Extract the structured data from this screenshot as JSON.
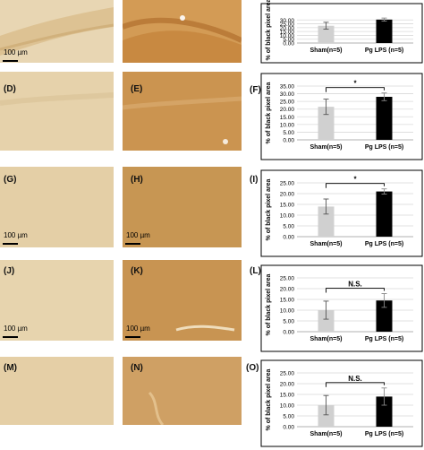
{
  "scale_bar_label": "100 µm",
  "colors": {
    "sham_bar": "#d0d0d0",
    "lps_bar": "#000000",
    "light_tissue": "#e3cfa7",
    "dark_tissue": "#c88d45"
  },
  "panels": [
    {
      "left_label": "",
      "right_label": "",
      "chart_label": ""
    },
    {
      "left_label": "(D)",
      "right_label": "(E)",
      "chart_label": "(F)"
    },
    {
      "left_label": "(G)",
      "right_label": "(H)",
      "chart_label": "(I)"
    },
    {
      "left_label": "(J)",
      "right_label": "(K)",
      "chart_label": "(L)"
    },
    {
      "left_label": "(M)",
      "right_label": "(N)",
      "chart_label": "(O)"
    }
  ],
  "chart_data": [
    {
      "type": "bar",
      "categories": [
        "Sham(n=5)",
        "Pg LPS (n=5)"
      ],
      "values": [
        22.5,
        30.5
      ],
      "errors": [
        4.5,
        2.0
      ],
      "ylabel": "% of black pixel area",
      "ylim": [
        0,
        35
      ],
      "yticks": [
        "0.00",
        "5.00",
        "10.00",
        "15.00",
        "20.00",
        "25.00",
        "30.00"
      ],
      "significance": "",
      "grid": true
    },
    {
      "type": "bar",
      "categories": [
        "Sham(n=5)",
        "Pg LPS (n=5)"
      ],
      "values": [
        21.5,
        28.0
      ],
      "errors": [
        5.0,
        2.5
      ],
      "ylabel": "% of black pixel area",
      "ylim": [
        0,
        35
      ],
      "yticks": [
        "0.00",
        "5.00",
        "10.00",
        "15.00",
        "20.00",
        "25.00",
        "30.00",
        "35.00"
      ],
      "significance": "*",
      "grid": true
    },
    {
      "type": "bar",
      "categories": [
        "Sham(n=5)",
        "Pg LPS (n=5)"
      ],
      "values": [
        14.0,
        21.0
      ],
      "errors": [
        3.5,
        1.2
      ],
      "ylabel": "% of black pixel area",
      "ylim": [
        0,
        25
      ],
      "yticks": [
        "0.00",
        "5.00",
        "10.00",
        "15.00",
        "20.00",
        "25.00"
      ],
      "significance": "*",
      "grid": true
    },
    {
      "type": "bar",
      "categories": [
        "Sham(n=5)",
        "Pg LPS (n=5)"
      ],
      "values": [
        10.0,
        14.5
      ],
      "errors": [
        4.2,
        3.2
      ],
      "ylabel": "% of black pixel area",
      "ylim": [
        0,
        25
      ],
      "yticks": [
        "0.00",
        "5.00",
        "10.00",
        "15.00",
        "20.00",
        "25.00"
      ],
      "significance": "N.S.",
      "grid": true
    },
    {
      "type": "bar",
      "categories": [
        "Sham(n=5)",
        "Pg LPS (n=5)"
      ],
      "values": [
        10.0,
        14.0
      ],
      "errors": [
        4.5,
        4.0
      ],
      "ylabel": "% of black pixel area",
      "ylim": [
        0,
        25
      ],
      "yticks": [
        "0.00",
        "5.00",
        "10.00",
        "15.00",
        "20.00",
        "25.00"
      ],
      "significance": "N.S.",
      "grid": true
    }
  ]
}
